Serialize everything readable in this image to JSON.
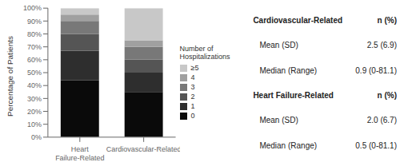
{
  "chart_data": {
    "type": "bar",
    "stacked": true,
    "grid": false,
    "legend": "right",
    "categories": [
      "Heart Failure-Related",
      "Cardiovascular-Related"
    ],
    "series": [
      {
        "name": "0",
        "color": "#0a0a0a",
        "values": [
          44,
          35
        ]
      },
      {
        "name": "1",
        "color": "#2e2e2e",
        "values": [
          23,
          15
        ]
      },
      {
        "name": "2",
        "color": "#555555",
        "values": [
          13,
          10
        ]
      },
      {
        "name": "3",
        "color": "#787878",
        "values": [
          10,
          10
        ]
      },
      {
        "name": "4",
        "color": "#a0a0a0",
        "values": [
          5,
          5
        ]
      },
      {
        "name": "≥5",
        "color": "#c8c8c8",
        "values": [
          5,
          25
        ]
      }
    ],
    "y_label": "Percentage of Patients",
    "ylim": [
      0,
      100
    ],
    "yticks": [
      {
        "value": 0,
        "label": "0%"
      },
      {
        "value": 10,
        "label": "10%"
      },
      {
        "value": 20,
        "label": "20%"
      },
      {
        "value": 30,
        "label": "30%"
      },
      {
        "value": 40,
        "label": "40%"
      },
      {
        "value": 50,
        "label": "50%"
      },
      {
        "value": 60,
        "label": "60%"
      },
      {
        "value": 70,
        "label": "70%"
      },
      {
        "value": 80,
        "label": "80%"
      },
      {
        "value": 90,
        "label": "90%"
      },
      {
        "value": 100,
        "label": "100%"
      }
    ],
    "legend_title": "Number of\nHospitalizations",
    "annotations": [
      {
        "title": "Cardiovascular-Related",
        "column": "n (%)",
        "rows": [
          {
            "label": "Mean (SD)",
            "value": "2.5 (6.9)"
          },
          {
            "label": "Median (Range)",
            "value": "0.9 (0-81.1)"
          }
        ]
      },
      {
        "title": "Heart Failure-Related",
        "column": "n (%)",
        "rows": [
          {
            "label": "Mean (SD)",
            "value": "2.0 (6.7)"
          },
          {
            "label": "Median (Range)",
            "value": "0.5 (0-81.1)"
          }
        ]
      }
    ]
  }
}
